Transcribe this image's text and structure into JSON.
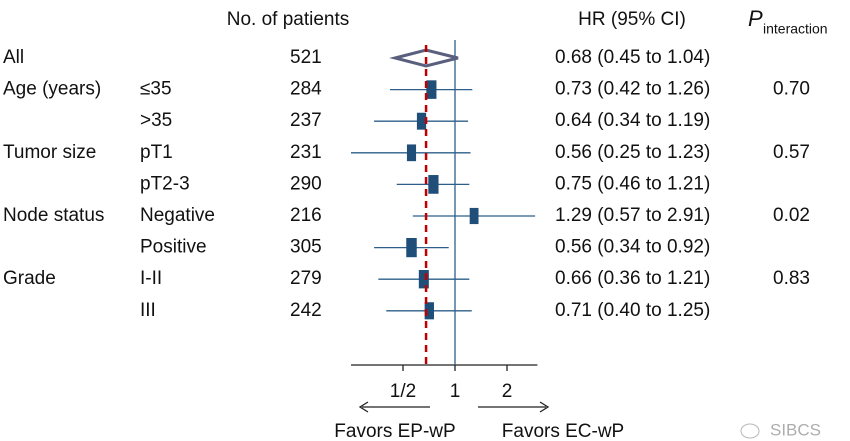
{
  "chart_data": {
    "type": "forest",
    "headers": {
      "patients": "No. of patients",
      "hr": "HR (95% CI)",
      "p": "P",
      "p_sub": "interaction"
    },
    "groups": [
      {
        "label": "All",
        "rows": [
          {
            "n": 521,
            "hr": 0.68,
            "lo": 0.45,
            "hi": 1.04,
            "hr_label": "0.68 (0.45 to 1.04)",
            "overall": true
          }
        ]
      },
      {
        "label": "Age (years)",
        "p": "0.70",
        "rows": [
          {
            "label": "≤35",
            "n": 284,
            "hr": 0.73,
            "lo": 0.42,
            "hi": 1.26,
            "hr_label": "0.73 (0.42 to 1.26)"
          },
          {
            "label": ">35",
            "n": 237,
            "hr": 0.64,
            "lo": 0.34,
            "hi": 1.19,
            "hr_label": "0.64 (0.34 to 1.19)"
          }
        ]
      },
      {
        "label": "Tumor size",
        "p": "0.57",
        "rows": [
          {
            "label": "pT1",
            "n": 231,
            "hr": 0.56,
            "lo": 0.25,
            "hi": 1.23,
            "hr_label": "0.56 (0.25 to 1.23)"
          },
          {
            "label": "pT2-3",
            "n": 290,
            "hr": 0.75,
            "lo": 0.46,
            "hi": 1.21,
            "hr_label": "0.75 (0.46 to 1.21)"
          }
        ]
      },
      {
        "label": "Node status",
        "p": "0.02",
        "rows": [
          {
            "label": "Negative",
            "n": 216,
            "hr": 1.29,
            "lo": 0.57,
            "hi": 2.91,
            "hr_label": "1.29 (0.57 to 2.91)"
          },
          {
            "label": "Positive",
            "n": 305,
            "hr": 0.56,
            "lo": 0.34,
            "hi": 0.92,
            "hr_label": "0.56 (0.34 to 0.92)"
          }
        ]
      },
      {
        "label": "Grade",
        "p": "0.83",
        "rows": [
          {
            "label": "I-II",
            "n": 279,
            "hr": 0.66,
            "lo": 0.36,
            "hi": 1.21,
            "hr_label": "0.66 (0.36 to 1.21)"
          },
          {
            "label": "III",
            "n": 242,
            "hr": 0.71,
            "lo": 0.4,
            "hi": 1.25,
            "hr_label": "0.71 (0.40 to 1.25)"
          }
        ]
      }
    ],
    "log_scale": true,
    "xlim": [
      0.25,
      3
    ],
    "xticks": [
      {
        "value": 0.5,
        "label": "1/2"
      },
      1,
      2
    ],
    "reference": 1,
    "favors_left": "Favors EP-wP",
    "favors_right": "Favors EC-wP",
    "box_color": "#1f4e79",
    "line_color": "#2e5f8a",
    "overall_line_color": "#c00000",
    "watermark": "SIBCS"
  }
}
